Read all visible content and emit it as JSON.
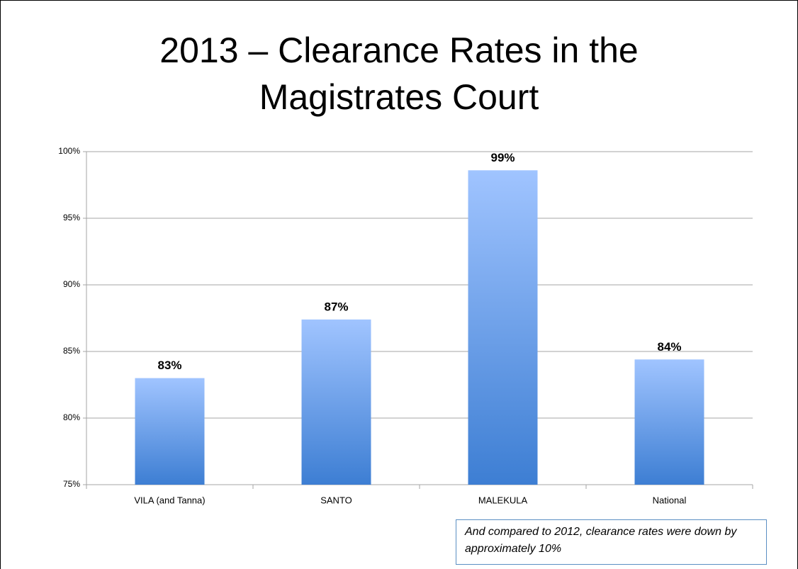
{
  "chart_data": {
    "type": "bar",
    "title": "2013 – Clearance Rates in the Magistrates Court",
    "categories": [
      "VILA (and Tanna)",
      "SANTO",
      "MALEKULA",
      "National"
    ],
    "values": [
      83.0,
      87.4,
      98.6,
      84.4
    ],
    "value_labels": [
      "83%",
      "87%",
      "99%",
      "84%"
    ],
    "ylim": [
      75,
      100
    ],
    "yticks": [
      {
        "value": 75,
        "label": "75%"
      },
      {
        "value": 80,
        "label": "80%"
      },
      {
        "value": 85,
        "label": "85%"
      },
      {
        "value": 90,
        "label": "90%"
      },
      {
        "value": 95,
        "label": "95%"
      },
      {
        "value": 100,
        "label": "100%"
      }
    ],
    "grid": true,
    "color_top": "#a0c4ff",
    "color_bottom": "#3d7ed3",
    "annotation": "And compared to 2012, clearance rates were down by approximately 10%"
  }
}
